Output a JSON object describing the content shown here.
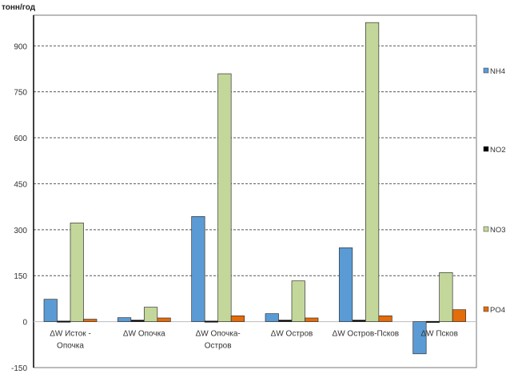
{
  "chart_data": {
    "type": "bar",
    "ylabel": "тонн/год",
    "ylim": [
      -150,
      1000
    ],
    "yticks": [
      -150,
      0,
      150,
      300,
      450,
      600,
      750,
      900
    ],
    "grid": true,
    "legend_position": "right",
    "categories": [
      [
        "ΔW Исток -",
        "Опочка"
      ],
      [
        "ΔW Опочка"
      ],
      [
        "ΔW Опочка-",
        "Остров"
      ],
      [
        "ΔW Остров"
      ],
      [
        "ΔW Остров-Псков"
      ],
      [
        "ΔW Псков"
      ]
    ],
    "series": [
      {
        "name": "NH4",
        "color": "#5b9bd5",
        "values": [
          73,
          13,
          343,
          26,
          241,
          -105
        ]
      },
      {
        "name": "NO2",
        "color": "#000000",
        "values": [
          2,
          5,
          2,
          5,
          5,
          1
        ]
      },
      {
        "name": "NO3",
        "color": "#c4d79b",
        "values": [
          322,
          47,
          809,
          133,
          976,
          160
        ]
      },
      {
        "name": "PO4",
        "color": "#e46c0a",
        "values": [
          8,
          12,
          19,
          12,
          19,
          39
        ]
      }
    ]
  }
}
